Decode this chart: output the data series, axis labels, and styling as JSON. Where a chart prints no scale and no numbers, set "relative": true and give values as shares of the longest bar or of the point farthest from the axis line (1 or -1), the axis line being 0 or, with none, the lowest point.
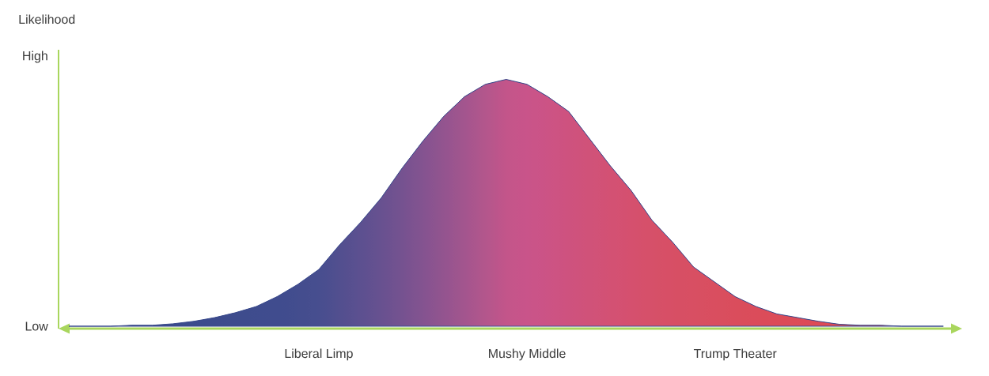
{
  "chart_data": {
    "type": "area",
    "ylabel": "Likelihood",
    "annotations": [
      "Low",
      "High"
    ],
    "relative": true,
    "color": "#3a4a8c",
    "colors": [
      "#3a4a8c",
      "#3a4a8c",
      "#3a4a8c",
      "#3b4a8c",
      "#3b4b8c",
      "#3c4b8d",
      "#3c4b8d",
      "#3d4b8d",
      "#3e4c8d",
      "#3f4c8e",
      "#404c8e",
      "#434d8e",
      "#474e8f",
      "#524f8f",
      "#5c5090",
      "#685190",
      "#755290",
      "#845390",
      "#93548f",
      "#a3558e",
      "#b3568c",
      "#c3558a",
      "#c9548a",
      "#cc5385",
      "#ce527f",
      "#d05279",
      "#d35174",
      "#d5506e",
      "#d65069",
      "#d74f65",
      "#d84f62",
      "#d94e5f",
      "#da4d5c",
      "#db4c5a",
      "#dc4c58",
      "#dd4b57",
      "#dd4b56",
      "#de4a55",
      "#de4a54",
      "#df4a53",
      "#df4953",
      "#e04952",
      "#e04852"
    ],
    "categories": [
      null,
      null,
      null,
      null,
      null,
      null,
      null,
      null,
      null,
      null,
      null,
      null,
      "Liberal Limp",
      null,
      null,
      null,
      null,
      null,
      null,
      null,
      null,
      null,
      "Mushy Middle",
      null,
      null,
      null,
      null,
      null,
      null,
      null,
      null,
      null,
      "Trump Theater",
      null,
      null,
      null,
      null,
      null,
      null,
      null,
      null,
      null,
      null
    ],
    "values": [
      0,
      0,
      0,
      0.004,
      0.004,
      0.01,
      0.02,
      0.035,
      0.055,
      0.08,
      0.12,
      0.17,
      0.23,
      0.33,
      0.42,
      0.52,
      0.64,
      0.75,
      0.85,
      0.93,
      0.98,
      1,
      0.98,
      0.93,
      0.87,
      0.76,
      0.65,
      0.55,
      0.43,
      0.34,
      0.24,
      0.18,
      0.12,
      0.08,
      0.05,
      0.035,
      0.02,
      0.008,
      0.004,
      0.004,
      0,
      0,
      0
    ]
  }
}
